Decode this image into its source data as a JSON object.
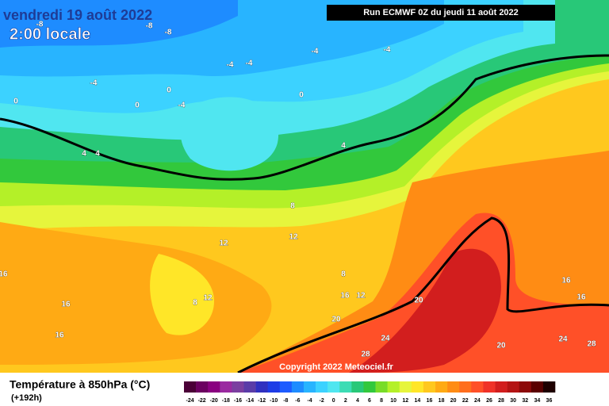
{
  "header": {
    "date": "vendredi 19 août 2022",
    "time": "2:00 locale",
    "run": "Run ECMWF 0Z du jeudi 11 août 2022",
    "copyright": "Copyright 2022 Meteociel.fr"
  },
  "legend": {
    "title": "Température à 850hPa (°C)",
    "lead": "(+192h)",
    "labels": [
      "-24",
      "-22",
      "-20",
      "-18",
      "-16",
      "-14",
      "-12",
      "-10",
      "-8",
      "-6",
      "-4",
      "-2",
      "0",
      "2",
      "4",
      "6",
      "8",
      "10",
      "12",
      "14",
      "16",
      "18",
      "20",
      "22",
      "24",
      "26",
      "28",
      "30",
      "32",
      "34",
      "36"
    ],
    "colors": [
      "#4b0037",
      "#6b0060",
      "#8a0080",
      "#9a2aa0",
      "#7b3fa0",
      "#5a3ca8",
      "#3030c0",
      "#1e3ce6",
      "#1e5cff",
      "#1e8cff",
      "#28b4ff",
      "#3cd2ff",
      "#50e6f0",
      "#3cdcb4",
      "#28c878",
      "#32c83c",
      "#78dc28",
      "#b4f028",
      "#e6f53c",
      "#ffe628",
      "#ffc81e",
      "#ffaa14",
      "#ff8c14",
      "#ff6e1e",
      "#ff5028",
      "#f03228",
      "#d21e1e",
      "#b41414",
      "#8c0a0a",
      "#5a0000",
      "#1e0000"
    ]
  },
  "contour_labels": [
    "-8",
    "-8",
    "-8",
    "-4",
    "-4",
    "-4",
    "-4",
    "-4",
    "-4",
    "0",
    "0",
    "0",
    "0",
    "4",
    "4",
    "4",
    "8",
    "8",
    "8",
    "12",
    "12",
    "12",
    "12",
    "16",
    "16",
    "16",
    "16",
    "16",
    "16",
    "20",
    "20",
    "20",
    "24",
    "24",
    "28",
    "28"
  ]
}
